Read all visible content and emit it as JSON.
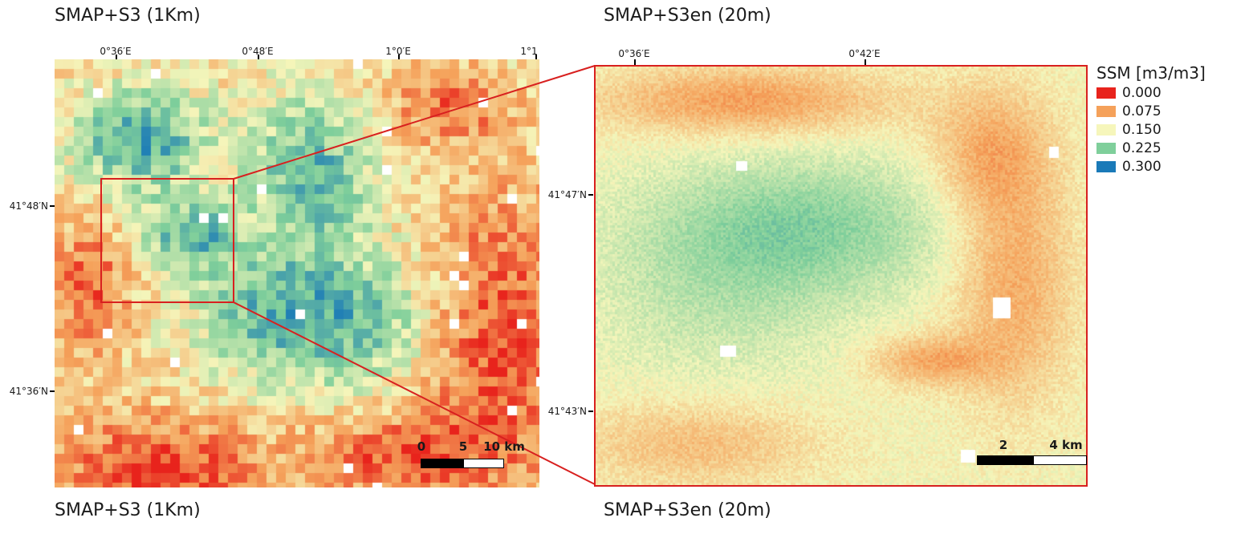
{
  "titles": {
    "top_left": "SMAP+S3 (1Km)",
    "top_right": "SMAP+S3en (20m)",
    "bottom_left": "SMAP+S3 (1Km)",
    "bottom_right": "SMAP+S3en (20m)"
  },
  "left_map": {
    "x_ticks": [
      "0°36′E",
      "0°48′E",
      "1°0′E",
      "1°1"
    ],
    "y_ticks": [
      "41°48′N",
      "41°36′N"
    ],
    "scalebar": {
      "labels": [
        "0",
        "5",
        "10 km"
      ]
    }
  },
  "right_map": {
    "x_ticks": [
      "0°36′E",
      "0°42′E"
    ],
    "y_ticks": [
      "41°47′N",
      "41°43′N"
    ],
    "scalebar": {
      "labels": [
        "2",
        "4 km"
      ]
    }
  },
  "legend": {
    "title": "SSM [m3/m3]",
    "items": [
      {
        "label": "0.000",
        "color": "#e8231c"
      },
      {
        "label": "0.075",
        "color": "#f5a15a"
      },
      {
        "label": "0.150",
        "color": "#f6f6bb"
      },
      {
        "label": "0.225",
        "color": "#7fcf9b"
      },
      {
        "label": "0.300",
        "color": "#1a7ab8"
      }
    ]
  },
  "colors": {
    "inset_frame": "#d8201f",
    "ramp": [
      "#e8231c",
      "#f5a15a",
      "#f6f6bb",
      "#7fcf9b",
      "#1a7ab8"
    ]
  }
}
